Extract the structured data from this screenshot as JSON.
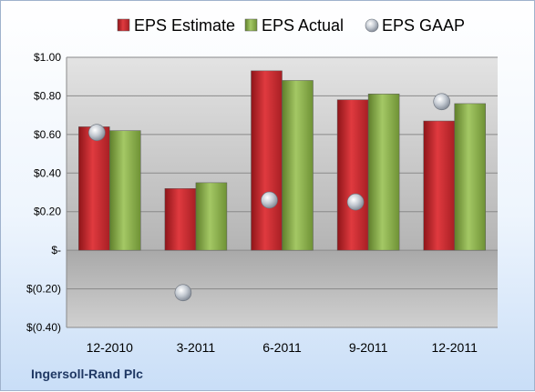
{
  "company": "Ingersoll-Rand Plc",
  "chart_data": {
    "type": "bar",
    "categories": [
      "12-2010",
      "3-2011",
      "6-2011",
      "9-2011",
      "12-2011"
    ],
    "series": [
      {
        "name": "EPS Estimate",
        "kind": "bar",
        "color": "#c0272d",
        "values": [
          0.64,
          0.32,
          0.93,
          0.78,
          0.67
        ]
      },
      {
        "name": "EPS Actual",
        "kind": "bar",
        "color": "#8bb04a",
        "values": [
          0.62,
          0.35,
          0.88,
          0.81,
          0.76
        ]
      },
      {
        "name": "EPS GAAP",
        "kind": "scatter",
        "color": "#b7bec8",
        "values": [
          0.61,
          -0.22,
          0.26,
          0.25,
          0.77
        ]
      }
    ],
    "ylim": [
      -0.4,
      1.0
    ],
    "yticks": [
      1.0,
      0.8,
      0.6,
      0.4,
      0.2,
      0,
      -0.2,
      -0.4
    ],
    "ytick_labels": [
      "$1.00",
      "$0.80",
      "$0.60",
      "$0.40",
      "$0.20",
      "$-",
      "$(0.20)",
      "$(0.40)"
    ],
    "grid": true,
    "legend_position": "top"
  }
}
